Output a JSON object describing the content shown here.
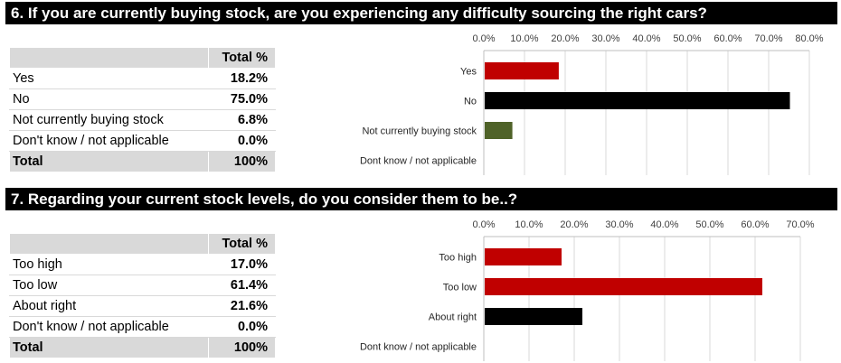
{
  "sections": [
    {
      "header": "6. If you are currently buying stock, are you experiencing any difficulty sourcing the right cars?",
      "table": {
        "column_header": "Total %",
        "rows": [
          {
            "label": "Yes",
            "value": "18.2%"
          },
          {
            "label": "No",
            "value": "75.0%"
          },
          {
            "label": "Not currently buying stock",
            "value": "6.8%"
          },
          {
            "label": "Don't know / not applicable",
            "value": "0.0%"
          }
        ],
        "total": {
          "label": "Total",
          "value": "100%"
        }
      }
    },
    {
      "header": "7. Regarding your current stock levels, do you consider them to be..?",
      "table": {
        "column_header": "Total %",
        "rows": [
          {
            "label": "Too high",
            "value": "17.0%"
          },
          {
            "label": "Too low",
            "value": "61.4%"
          },
          {
            "label": "About right",
            "value": "21.6%"
          },
          {
            "label": "Don't know / not applicable",
            "value": "0.0%"
          }
        ],
        "total": {
          "label": "Total",
          "value": "100%"
        }
      }
    }
  ],
  "chart_data": [
    {
      "type": "bar",
      "orientation": "horizontal",
      "categories": [
        "Yes",
        "No",
        "Not currently buying stock",
        "Dont know / not applicable"
      ],
      "values": [
        18.2,
        75.0,
        6.8,
        0.0
      ],
      "colors": [
        "#c00000",
        "#000000",
        "#4f6228",
        "#000000"
      ],
      "xlim": [
        0,
        80
      ],
      "ticks": [
        "0.0%",
        "10.0%",
        "20.0%",
        "30.0%",
        "40.0%",
        "50.0%",
        "60.0%",
        "70.0%",
        "80.0%"
      ],
      "tick_values": [
        0,
        10,
        20,
        30,
        40,
        50,
        60,
        70,
        80
      ],
      "axis_position": "top",
      "grid": true
    },
    {
      "type": "bar",
      "orientation": "horizontal",
      "categories": [
        "Too high",
        "Too low",
        "About right",
        "Dont know / not applicable"
      ],
      "values": [
        17.0,
        61.4,
        21.6,
        0.0
      ],
      "colors": [
        "#c00000",
        "#c00000",
        "#000000",
        "#000000"
      ],
      "xlim": [
        0,
        70
      ],
      "ticks": [
        "0.0%",
        "10.0%",
        "20.0%",
        "30.0%",
        "40.0%",
        "50.0%",
        "60.0%",
        "70.0%"
      ],
      "tick_values": [
        0,
        10,
        20,
        30,
        40,
        50,
        60,
        70
      ],
      "axis_position": "top",
      "grid": true
    }
  ]
}
